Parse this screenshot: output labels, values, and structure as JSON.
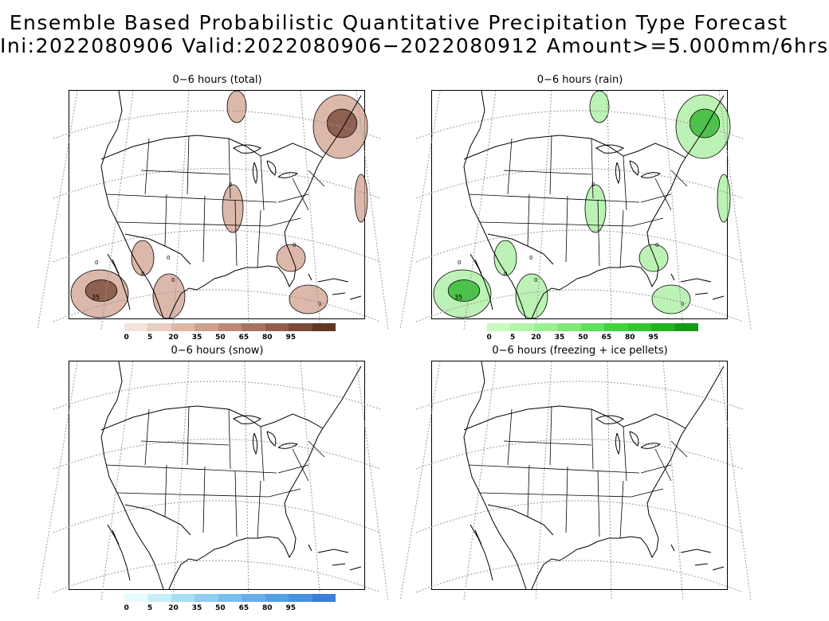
{
  "header": {
    "title_line1": "Ensemble Based Probabilistic Quantitative Precipitation Type Forecast",
    "title_line2": "Ini:2022080906 Valid:2022080906−2022080912 Amount>=5.000mm/6hrs"
  },
  "panels": [
    {
      "id": "total",
      "title": "0−6 hours (total)",
      "fill": "#cfa08d",
      "fill_dark": "#7a4a3a"
    },
    {
      "id": "rain",
      "title": "0−6 hours (rain)",
      "fill": "#a6ee9c",
      "fill_dark": "#2fb52f"
    },
    {
      "id": "snow",
      "title": "0−6 hours (snow)"
    },
    {
      "id": "freezing",
      "title": "0−6 hours (freezing + ice pellets)"
    }
  ],
  "contour_labels": {
    "total_max": "35",
    "rain_max": "35",
    "zero": "0"
  },
  "legends": {
    "ticks": [
      "0",
      "5",
      "20",
      "35",
      "50",
      "65",
      "80",
      "95"
    ],
    "total_colors": [
      "#f3e3dc",
      "#e8cdc1",
      "#ddb8a8",
      "#cfa08d",
      "#bd8a76",
      "#a8735f",
      "#925d4a",
      "#7a4a3a",
      "#623526"
    ],
    "rain_colors": [
      "#c8fbc0",
      "#b1f5a8",
      "#9aef90",
      "#80e878",
      "#5fe05a",
      "#40d43c",
      "#30c82e",
      "#22b322",
      "#169a18"
    ],
    "snow_colors": [
      "#e6fbfd",
      "#c6eef9",
      "#a7def4",
      "#8fcdf0",
      "#7bbdec",
      "#68aee8",
      "#559fe4",
      "#4890e0",
      "#3a7fda"
    ]
  }
}
